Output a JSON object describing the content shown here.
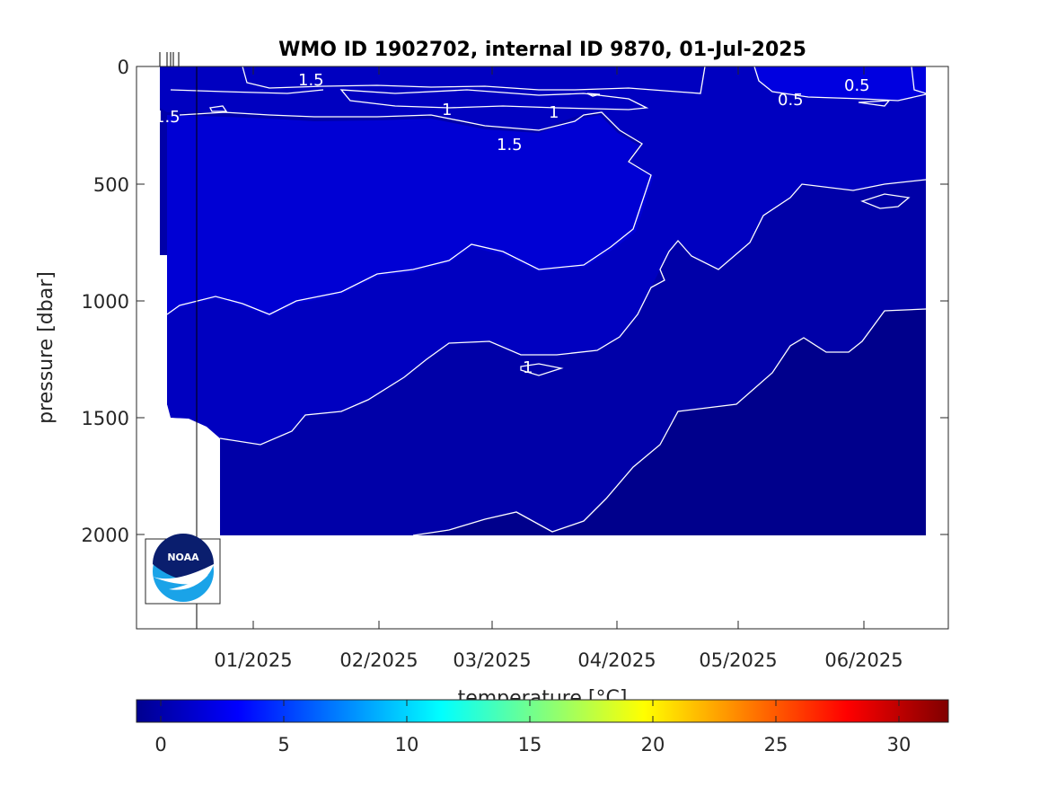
{
  "chart_data": {
    "type": "heatmap",
    "title": "WMO ID 1902702, internal ID 9870, 01-Jul-2025",
    "xlabel": "",
    "ylabel": "pressure [dbar]",
    "y_reversed": true,
    "ylim": [
      0,
      2400
    ],
    "yticks": [
      0,
      500,
      1000,
      1500,
      2000
    ],
    "ytick_labels": [
      "0",
      "500",
      "1000",
      "1500",
      "2000"
    ],
    "xticks": [
      "01/2025",
      "02/2025",
      "03/2025",
      "04/2025",
      "05/2025",
      "06/2025"
    ],
    "colorbar": {
      "label": "temperature [°C]",
      "range": [
        -1,
        32
      ],
      "ticks": [
        0,
        5,
        10,
        15,
        20,
        25,
        30
      ],
      "tick_labels": [
        "0",
        "5",
        "10",
        "15",
        "20",
        "25",
        "30"
      ],
      "colormap": "jet"
    },
    "contour_levels": [
      0.5,
      1,
      1.5
    ],
    "contour_labels": [
      {
        "text": "1.5",
        "near": "upper-left"
      },
      {
        "text": "1.5",
        "near": "left-edge"
      },
      {
        "text": "1",
        "near": "mid-upper"
      },
      {
        "text": "1",
        "near": "mid-upper"
      },
      {
        "text": "1.5",
        "near": "mid-upper"
      },
      {
        "text": "0.5",
        "near": "upper-right"
      },
      {
        "text": "0.5",
        "near": "top-right"
      },
      {
        "text": "1",
        "near": "center"
      }
    ],
    "temperature_by_depth": [
      {
        "pressure": 0,
        "temperature": 1.2
      },
      {
        "pressure": 250,
        "temperature": 1.5
      },
      {
        "pressure": 800,
        "temperature": 1.5
      },
      {
        "pressure": 1200,
        "temperature": 1.0
      },
      {
        "pressure": 1600,
        "temperature": 0.7
      },
      {
        "pressure": 2000,
        "temperature": 0.5
      }
    ],
    "grid": false
  },
  "colors": {
    "deep": "#00007a",
    "mid": "#0000b8",
    "shallow": "#0000d8",
    "contour": "#ffffff"
  },
  "logo": {
    "text": "NOAA"
  }
}
